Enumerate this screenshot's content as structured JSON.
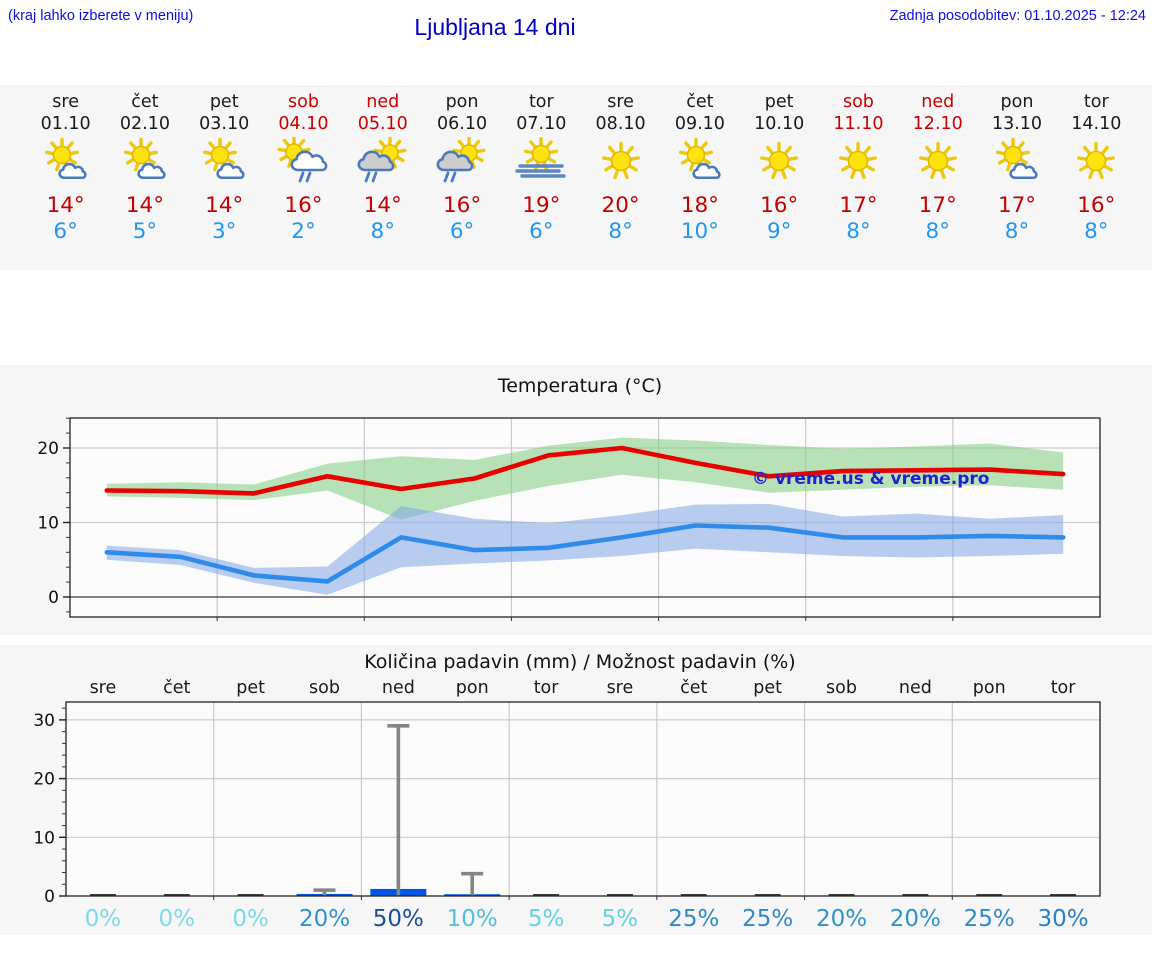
{
  "header": {
    "hint": "(kraj lahko izberete v meniju)",
    "title": "Ljubljana 14 dni",
    "last_update": "Zadnja posodobitev: 01.10.2025 - 12:24"
  },
  "colors": {
    "header_blue": "#0e0eea",
    "title_blue": "#0000c8",
    "weekend_red": "#cc0000",
    "strip_max_red": "#c40000",
    "strip_min_blue": "#2196f3",
    "temp_max_line": "#e60000",
    "temp_min_line": "#2e8bea",
    "band_green": "#7fce7f",
    "band_blue": "#7fa6e4",
    "bar_blue": "#0057e7",
    "whisker_gray": "#858585",
    "figure_bg": "#f6f6f6"
  },
  "forecast": {
    "days": [
      {
        "day": "sre",
        "date": "01.10",
        "weekend": false,
        "icon": "sun-small-cloud",
        "tmax": "14°",
        "tmin": "6°"
      },
      {
        "day": "čet",
        "date": "02.10",
        "weekend": false,
        "icon": "sun-small-cloud",
        "tmax": "14°",
        "tmin": "5°"
      },
      {
        "day": "pet",
        "date": "03.10",
        "weekend": false,
        "icon": "sun-small-cloud",
        "tmax": "14°",
        "tmin": "3°"
      },
      {
        "day": "sob",
        "date": "04.10",
        "weekend": true,
        "icon": "sun-cloud-rain",
        "tmax": "16°",
        "tmin": "2°"
      },
      {
        "day": "ned",
        "date": "05.10",
        "weekend": true,
        "icon": "cloud-sun-rain",
        "tmax": "14°",
        "tmin": "8°"
      },
      {
        "day": "pon",
        "date": "06.10",
        "weekend": false,
        "icon": "cloud-sun-rain",
        "tmax": "16°",
        "tmin": "6°"
      },
      {
        "day": "tor",
        "date": "07.10",
        "weekend": false,
        "icon": "sun-fog",
        "tmax": "19°",
        "tmin": "6°"
      },
      {
        "day": "sre",
        "date": "08.10",
        "weekend": false,
        "icon": "sun",
        "tmax": "20°",
        "tmin": "8°"
      },
      {
        "day": "čet",
        "date": "09.10",
        "weekend": false,
        "icon": "sun-small-cloud",
        "tmax": "18°",
        "tmin": "10°"
      },
      {
        "day": "pet",
        "date": "10.10",
        "weekend": false,
        "icon": "sun",
        "tmax": "16°",
        "tmin": "9°"
      },
      {
        "day": "sob",
        "date": "11.10",
        "weekend": true,
        "icon": "sun",
        "tmax": "17°",
        "tmin": "8°"
      },
      {
        "day": "ned",
        "date": "12.10",
        "weekend": true,
        "icon": "sun",
        "tmax": "17°",
        "tmin": "8°"
      },
      {
        "day": "pon",
        "date": "13.10",
        "weekend": false,
        "icon": "sun-small-cloud",
        "tmax": "17°",
        "tmin": "8°"
      },
      {
        "day": "tor",
        "date": "14.10",
        "weekend": false,
        "icon": "sun",
        "tmax": "16°",
        "tmin": "8°"
      }
    ]
  },
  "chart_data": [
    {
      "type": "line",
      "title": "Temperatura (°C)",
      "categories": [
        "sre",
        "čet",
        "pet",
        "sob",
        "ned",
        "pon",
        "tor",
        "sre",
        "čet",
        "pet",
        "sob",
        "ned",
        "pon",
        "tor"
      ],
      "series": [
        {
          "name": "max-temperature",
          "color": "#e60000",
          "values": [
            14.3,
            14.2,
            13.9,
            16.2,
            14.5,
            15.9,
            19.0,
            20.0,
            18.0,
            16.2,
            16.9,
            17.0,
            17.1,
            16.5
          ]
        },
        {
          "name": "min-temperature",
          "color": "#2e8bea",
          "values": [
            6.0,
            5.4,
            2.9,
            2.1,
            8.0,
            6.3,
            6.6,
            8.0,
            9.6,
            9.3,
            8.0,
            8.0,
            8.2,
            8.0
          ]
        }
      ],
      "bands": [
        {
          "name": "max-range",
          "color": "#7fce7f",
          "upper": [
            15.2,
            15.4,
            15.1,
            17.9,
            18.9,
            18.4,
            20.3,
            21.4,
            21.0,
            20.4,
            19.9,
            20.2,
            20.6,
            19.4
          ],
          "lower": [
            13.5,
            13.3,
            13.0,
            14.3,
            10.4,
            12.9,
            14.9,
            16.4,
            15.4,
            14.0,
            14.4,
            14.8,
            15.0,
            14.4
          ]
        },
        {
          "name": "min-range",
          "color": "#7fa6e4",
          "upper": [
            6.9,
            6.3,
            3.9,
            4.1,
            12.2,
            10.5,
            9.9,
            11.0,
            12.4,
            12.5,
            10.8,
            11.2,
            10.5,
            11.0
          ],
          "lower": [
            5.0,
            4.3,
            1.9,
            0.3,
            4.0,
            4.5,
            4.9,
            5.5,
            6.5,
            6.0,
            5.5,
            5.3,
            5.5,
            5.8
          ]
        }
      ],
      "yticks": [
        "0",
        "10",
        "20"
      ],
      "ylim": [
        -2.7,
        24.0
      ],
      "grid": true,
      "watermark": "© vreme.us & vreme.pro",
      "watermark_color": "#2121cf"
    },
    {
      "type": "bar",
      "title": "Količina padavin (mm) / Možnost padavin (%)",
      "categories": [
        "sre",
        "čet",
        "pet",
        "sob",
        "ned",
        "pon",
        "tor",
        "sre",
        "čet",
        "pet",
        "sob",
        "ned",
        "pon",
        "tor"
      ],
      "amount_mm": [
        0,
        0,
        0,
        0.35,
        1.2,
        0.3,
        0,
        0,
        0,
        0,
        0,
        0,
        0,
        0
      ],
      "amount_max_mm": [
        0,
        0,
        0,
        1.0,
        29.0,
        3.8,
        0,
        0,
        0,
        0,
        0,
        0,
        0,
        0
      ],
      "probability_pct": [
        0,
        0,
        0,
        20,
        50,
        10,
        5,
        5,
        25,
        25,
        20,
        20,
        25,
        30
      ],
      "probability_labels": [
        "0%",
        "0%",
        "0%",
        "20%",
        "50%",
        "10%",
        "5%",
        "5%",
        "25%",
        "25%",
        "20%",
        "20%",
        "25%",
        "30%"
      ],
      "probability_colors": [
        "#7adbe9",
        "#7adbe9",
        "#7adbe9",
        "#3093cc",
        "#1d4f9c",
        "#4fc2db",
        "#64d2e3",
        "#64d2e3",
        "#2d8ac6",
        "#2d8ac6",
        "#3093cc",
        "#3093cc",
        "#2d8ac6",
        "#2a80c0"
      ],
      "yticks": [
        "0",
        "10",
        "20",
        "30"
      ],
      "ylim": [
        0,
        33.4
      ],
      "grid": true,
      "bar_color": "#0057e7",
      "whisker_color": "#858585"
    }
  ]
}
